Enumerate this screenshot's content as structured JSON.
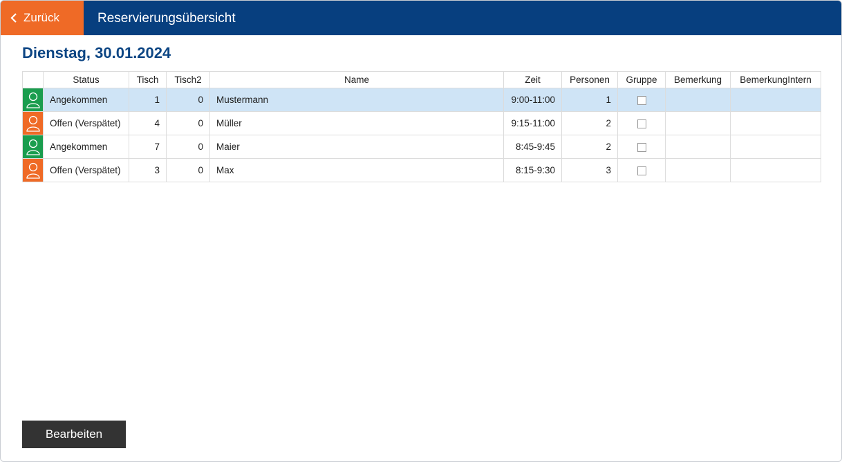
{
  "header": {
    "back_label": "Zurück",
    "title": "Reservierungsübersicht"
  },
  "date_heading": "Dienstag, 30.01.2024",
  "table": {
    "columns": [
      "Status",
      "Tisch",
      "Tisch2",
      "Name",
      "Zeit",
      "Personen",
      "Gruppe",
      "Bemerkung",
      "BemerkungIntern"
    ],
    "rows": [
      {
        "status": "Angekommen",
        "tisch": "1",
        "tisch2": "0",
        "name": "Mustermann",
        "zeit": "9:00-11:00",
        "personen": "1",
        "gruppe": false,
        "bemerkung": "",
        "bemerkung_intern": "",
        "status_color": "#1a9d4e"
      },
      {
        "status": "Offen (Verspätet)",
        "tisch": "4",
        "tisch2": "0",
        "name": "Müller",
        "zeit": "9:15-11:00",
        "personen": "2",
        "gruppe": false,
        "bemerkung": "",
        "bemerkung_intern": "",
        "status_color": "#ef6a26"
      },
      {
        "status": "Angekommen",
        "tisch": "7",
        "tisch2": "0",
        "name": "Maier",
        "zeit": "8:45-9:45",
        "personen": "2",
        "gruppe": false,
        "bemerkung": "",
        "bemerkung_intern": "",
        "status_color": "#1a9d4e"
      },
      {
        "status": "Offen (Verspätet)",
        "tisch": "3",
        "tisch2": "0",
        "name": "Max",
        "zeit": "8:15-9:30",
        "personen": "3",
        "gruppe": false,
        "bemerkung": "",
        "bemerkung_intern": "",
        "status_color": "#ef6a26"
      }
    ]
  },
  "footer": {
    "edit_label": "Bearbeiten"
  },
  "colors": {
    "header_bg": "#073f7f",
    "accent_orange": "#ef6a26",
    "status_green": "#1a9d4e",
    "selected_row": "#cfe4f6"
  }
}
